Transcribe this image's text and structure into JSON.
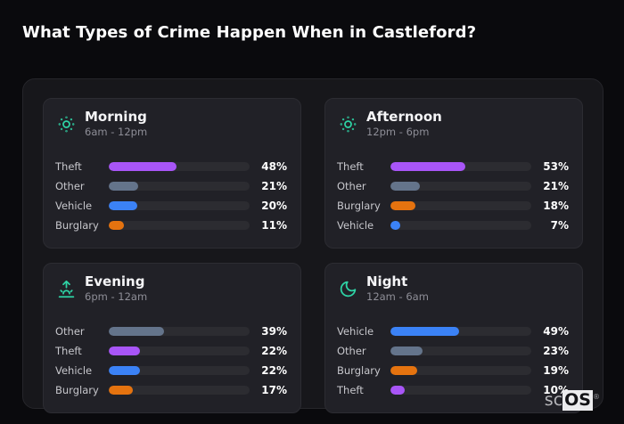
{
  "page": {
    "title": "What Types of Crime Happen When in Castleford?",
    "watermark": {
      "prefix": "sc",
      "suffix": "OS",
      "reg": "®"
    }
  },
  "colors": {
    "background": "#0a0a0d",
    "panel": "#17171b",
    "card": "#212127",
    "track": "#2c2c31",
    "icon_teal": "#2ed3a5",
    "categories": {
      "Theft": "#a855f7",
      "Other": "#64748b",
      "Vehicle": "#3b82f6",
      "Burglary": "#e5730f"
    }
  },
  "chart_data": [
    {
      "type": "bar",
      "title": "Morning",
      "subtitle": "6am - 12pm",
      "icon": "sun-icon",
      "unit": "%",
      "xlim": [
        0,
        100
      ],
      "categories": [
        "Theft",
        "Other",
        "Vehicle",
        "Burglary"
      ],
      "values": [
        48,
        21,
        20,
        11
      ]
    },
    {
      "type": "bar",
      "title": "Afternoon",
      "subtitle": "12pm - 6pm",
      "icon": "sun-icon",
      "unit": "%",
      "xlim": [
        0,
        100
      ],
      "categories": [
        "Theft",
        "Other",
        "Burglary",
        "Vehicle"
      ],
      "values": [
        53,
        21,
        18,
        7
      ]
    },
    {
      "type": "bar",
      "title": "Evening",
      "subtitle": "6pm - 12am",
      "icon": "sunrise-icon",
      "unit": "%",
      "xlim": [
        0,
        100
      ],
      "categories": [
        "Other",
        "Theft",
        "Vehicle",
        "Burglary"
      ],
      "values": [
        39,
        22,
        22,
        17
      ]
    },
    {
      "type": "bar",
      "title": "Night",
      "subtitle": "12am - 6am",
      "icon": "moon-icon",
      "unit": "%",
      "xlim": [
        0,
        100
      ],
      "categories": [
        "Vehicle",
        "Other",
        "Burglary",
        "Theft"
      ],
      "values": [
        49,
        23,
        19,
        10
      ]
    }
  ]
}
